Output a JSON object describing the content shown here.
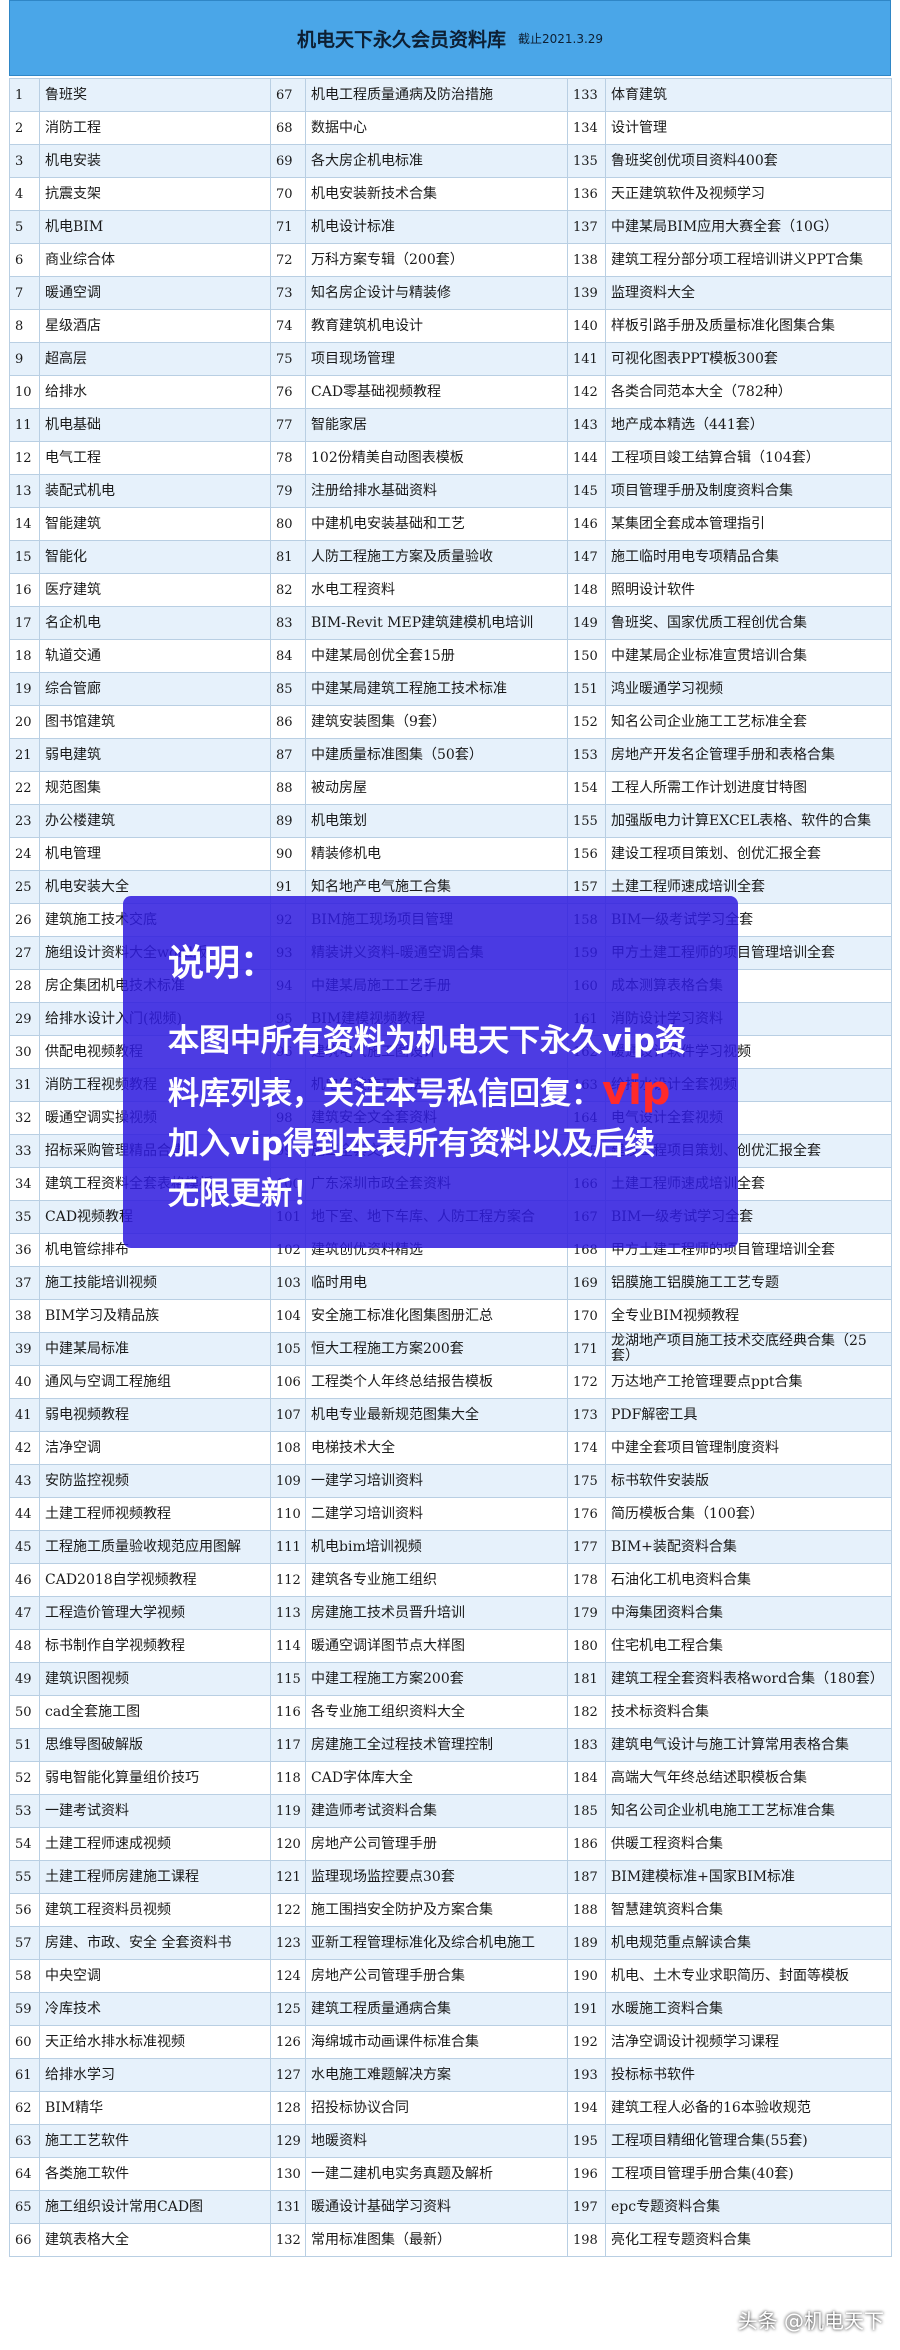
{
  "header": {
    "title": "机电天下永久会员资料库",
    "date": "截止2021.3.29"
  },
  "table": {
    "rows": [
      [
        1,
        "鲁班奖",
        67,
        "机电工程质量通病及防治措施",
        133,
        "体育建筑"
      ],
      [
        2,
        "消防工程",
        68,
        "数据中心",
        134,
        "设计管理"
      ],
      [
        3,
        "机电安装",
        69,
        "各大房企机电标准",
        135,
        "鲁班奖创优项目资料400套"
      ],
      [
        4,
        "抗震支架",
        70,
        "机电安装新技术合集",
        136,
        "天正建筑软件及视频学习"
      ],
      [
        5,
        "机电BIM",
        71,
        "机电设计标准",
        137,
        "中建某局BIM应用大赛全套（10G）"
      ],
      [
        6,
        "商业综合体",
        72,
        "万科方案专辑（200套）",
        138,
        "建筑工程分部分项工程培训讲义PPT合集"
      ],
      [
        7,
        "暖通空调",
        73,
        "知名房企设计与精装修",
        139,
        "监理资料大全"
      ],
      [
        8,
        "星级酒店",
        74,
        "教育建筑机电设计",
        140,
        "样板引路手册及质量标准化图集合集"
      ],
      [
        9,
        "超高层",
        75,
        "项目现场管理",
        141,
        "可视化图表PPT模板300套"
      ],
      [
        10,
        "给排水",
        76,
        "CAD零基础视频教程",
        142,
        "各类合同范本大全（782种）"
      ],
      [
        11,
        "机电基础",
        77,
        "智能家居",
        143,
        "地产成本精选（441套）"
      ],
      [
        12,
        "电气工程",
        78,
        "102份精美自动图表模板",
        144,
        "工程项目竣工结算合辑（104套）"
      ],
      [
        13,
        "装配式机电",
        79,
        "注册给排水基础资料",
        145,
        "项目管理手册及制度资料合集"
      ],
      [
        14,
        "智能建筑",
        80,
        "中建机电安装基础和工艺",
        146,
        "某集团全套成本管理指引"
      ],
      [
        15,
        "智能化",
        81,
        "人防工程施工方案及质量验收",
        147,
        "施工临时用电专项精品合集"
      ],
      [
        16,
        "医疗建筑",
        82,
        "水电工程资料",
        148,
        "照明设计软件"
      ],
      [
        17,
        "名企机电",
        83,
        "BIM-Revit MEP建筑建模机电培训",
        149,
        "鲁班奖、国家优质工程创优合集"
      ],
      [
        18,
        "轨道交通",
        84,
        "中建某局创优全套15册",
        150,
        "中建某局企业标准宣贯培训合集"
      ],
      [
        19,
        "综合管廊",
        85,
        "中建某局建筑工程施工技术标准",
        151,
        "鸿业暖通学习视频"
      ],
      [
        20,
        "图书馆建筑",
        86,
        "建筑安装图集（9套）",
        152,
        "知名公司企业施工工艺标准全套"
      ],
      [
        21,
        "弱电建筑",
        87,
        "中建质量标准图集（50套）",
        153,
        "房地产开发名企管理手册和表格合集"
      ],
      [
        22,
        "规范图集",
        88,
        "被动房屋",
        154,
        "工程人所需工作计划进度甘特图"
      ],
      [
        23,
        "办公楼建筑",
        89,
        "机电策划",
        155,
        "加强版电力计算EXCEL表格、软件的合集"
      ],
      [
        24,
        "机电管理",
        90,
        "精装修机电",
        156,
        "建设工程项目策划、创优汇报全套"
      ],
      [
        25,
        "机电安装大全",
        91,
        "知名地产电气施工合集",
        157,
        "土建工程师速成培训全套"
      ],
      [
        26,
        "建筑施工技术交底",
        92,
        "BIM施工现场项目管理",
        158,
        "BIM一级考试学习全套"
      ],
      [
        27,
        "施组设计资料大全word版",
        93,
        "精装讲义资料-暖通空调合集",
        159,
        "甲方土建工程师的项目管理培训全套"
      ],
      [
        28,
        "房企集团机电技术标准",
        94,
        "中建某局施工工艺手册",
        160,
        "成本测算表格合集"
      ],
      [
        29,
        "给排水设计入门(视频)",
        95,
        "BIM建模视频教程",
        161,
        "消防设计学习资料"
      ],
      [
        30,
        "供配电视频教程",
        96,
        "建筑电气施工图设计",
        162,
        "暖通设计软件学习视频"
      ],
      [
        31,
        "消防工程视频教程",
        97,
        "机电安装施工工法",
        163,
        "给排水设计全套视频"
      ],
      [
        32,
        "暖通空调实操视频",
        98,
        "建筑安全文全套资料",
        164,
        "电气设计全套视频"
      ],
      [
        33,
        "招标采购管理精品合集",
        99,
        "施工全套文件",
        165,
        "建设工程项目策划、创优汇报全套"
      ],
      [
        34,
        "建筑工程资料全套表格模板",
        100,
        "广东深圳市政全套资料",
        166,
        "土建工程师速成培训全套"
      ],
      [
        35,
        "CAD视频教程",
        101,
        "地下室、地下车库、人防工程方案合",
        167,
        "BIM一级考试学习全套"
      ],
      [
        36,
        "机电管综排布",
        102,
        "建筑创优资料精选",
        168,
        "甲方土建工程师的项目管理培训全套"
      ],
      [
        37,
        "施工技能培训视频",
        103,
        "临时用电",
        169,
        "铝膜施工铝膜施工工艺专题"
      ],
      [
        38,
        "BIM学习及精品族",
        104,
        "安全施工标准化图集图册汇总",
        170,
        "全专业BIM视频教程"
      ],
      [
        39,
        "中建某局标准",
        105,
        "恒大工程施工方案200套",
        171,
        "龙湖地产项目施工技术交底经典合集（25套）"
      ],
      [
        40,
        "通风与空调工程施组",
        106,
        "工程类个人年终总结报告模板",
        172,
        "万达地产工抢管理要点ppt合集"
      ],
      [
        41,
        "弱电视频教程",
        107,
        "机电专业最新规范图集大全",
        173,
        "PDF解密工具"
      ],
      [
        42,
        "洁净空调",
        108,
        "电梯技术大全",
        174,
        "中建全套项目管理制度资料"
      ],
      [
        43,
        "安防监控视频",
        109,
        "一建学习培训资料",
        175,
        "标书软件安装版"
      ],
      [
        44,
        "土建工程师视频教程",
        110,
        "二建学习培训资料",
        176,
        "简历模板合集（100套）"
      ],
      [
        45,
        "工程施工质量验收规范应用图解",
        111,
        "机电bim培训视频",
        177,
        "BIM+装配资料合集"
      ],
      [
        46,
        "CAD2018自学视频教程",
        112,
        "建筑各专业施工组织",
        178,
        "石油化工机电资料合集"
      ],
      [
        47,
        "工程造价管理大学视频",
        113,
        "房建施工技术员晋升培训",
        179,
        "中海集团资料合集"
      ],
      [
        48,
        "标书制作自学视频教程",
        114,
        "暖通空调详图节点大样图",
        180,
        "住宅机电工程合集"
      ],
      [
        49,
        "建筑识图视频",
        115,
        "中建工程施工方案200套",
        181,
        "建筑工程全套资料表格word合集（180套）"
      ],
      [
        50,
        "cad全套施工图",
        116,
        "各专业施工组织资料大全",
        182,
        "技术标资料合集"
      ],
      [
        51,
        "思维导图破解版",
        117,
        "房建施工全过程技术管理控制",
        183,
        "建筑电气设计与施工计算常用表格合集"
      ],
      [
        52,
        "弱电智能化算量组价技巧",
        118,
        "CAD字体库大全",
        184,
        "高端大气年终总结述职模板合集"
      ],
      [
        53,
        "一建考试资料",
        119,
        "建造师考试资料合集",
        185,
        "知名公司企业机电施工工艺标准合集"
      ],
      [
        54,
        "土建工程师速成视频",
        120,
        "房地产公司管理手册",
        186,
        "供暖工程资料合集"
      ],
      [
        55,
        "土建工程师房建施工课程",
        121,
        "监理现场监控要点30套",
        187,
        "BIM建模标准+国家BIM标准"
      ],
      [
        56,
        "建筑工程资料员视频",
        122,
        "施工围挡安全防护及方案合集",
        188,
        "智慧建筑资料合集"
      ],
      [
        57,
        "房建、市政、安全 全套资料书",
        123,
        "亚新工程管理标准化及综合机电施工",
        189,
        "机电规范重点解读合集"
      ],
      [
        58,
        "中央空调",
        124,
        "房地产公司管理手册合集",
        190,
        "机电、土木专业求职简历、封面等模板"
      ],
      [
        59,
        "冷库技术",
        125,
        "建筑工程质量通病合集",
        191,
        "水暖施工资料合集"
      ],
      [
        60,
        "天正给水排水标准视频",
        126,
        "海绵城市动画课件标准合集",
        192,
        "洁净空调设计视频学习课程"
      ],
      [
        61,
        "给排水学习",
        127,
        "水电施工难题解决方案",
        193,
        "投标标书软件"
      ],
      [
        62,
        "BIM精华",
        128,
        "招投标协议合同",
        194,
        "建筑工程人必备的16本验收规范"
      ],
      [
        63,
        "施工工艺软件",
        129,
        "地暖资料",
        195,
        "工程项目精细化管理合集(55套)"
      ],
      [
        64,
        "各类施工软件",
        130,
        "一建二建机电实务真题及解析",
        196,
        "工程项目管理手册合集(40套)"
      ],
      [
        65,
        "施工组织设计常用CAD图",
        131,
        "暖通设计基础学习资料",
        197,
        "epc专题资料合集"
      ],
      [
        66,
        "建筑表格大全",
        132,
        "常用标准图集（最新）",
        198,
        "亮化工程专题资料合集"
      ]
    ]
  },
  "notice": {
    "heading": "说明：",
    "line1": "本图中所有资料为机电天下永久vip资",
    "line2": "料库列表，关注本号私信回复：",
    "keyword": "vip",
    "line3": "加入vip得到本表所有资料以及后续",
    "line4": "无限更新！"
  },
  "watermark": "头条 @机电天下"
}
